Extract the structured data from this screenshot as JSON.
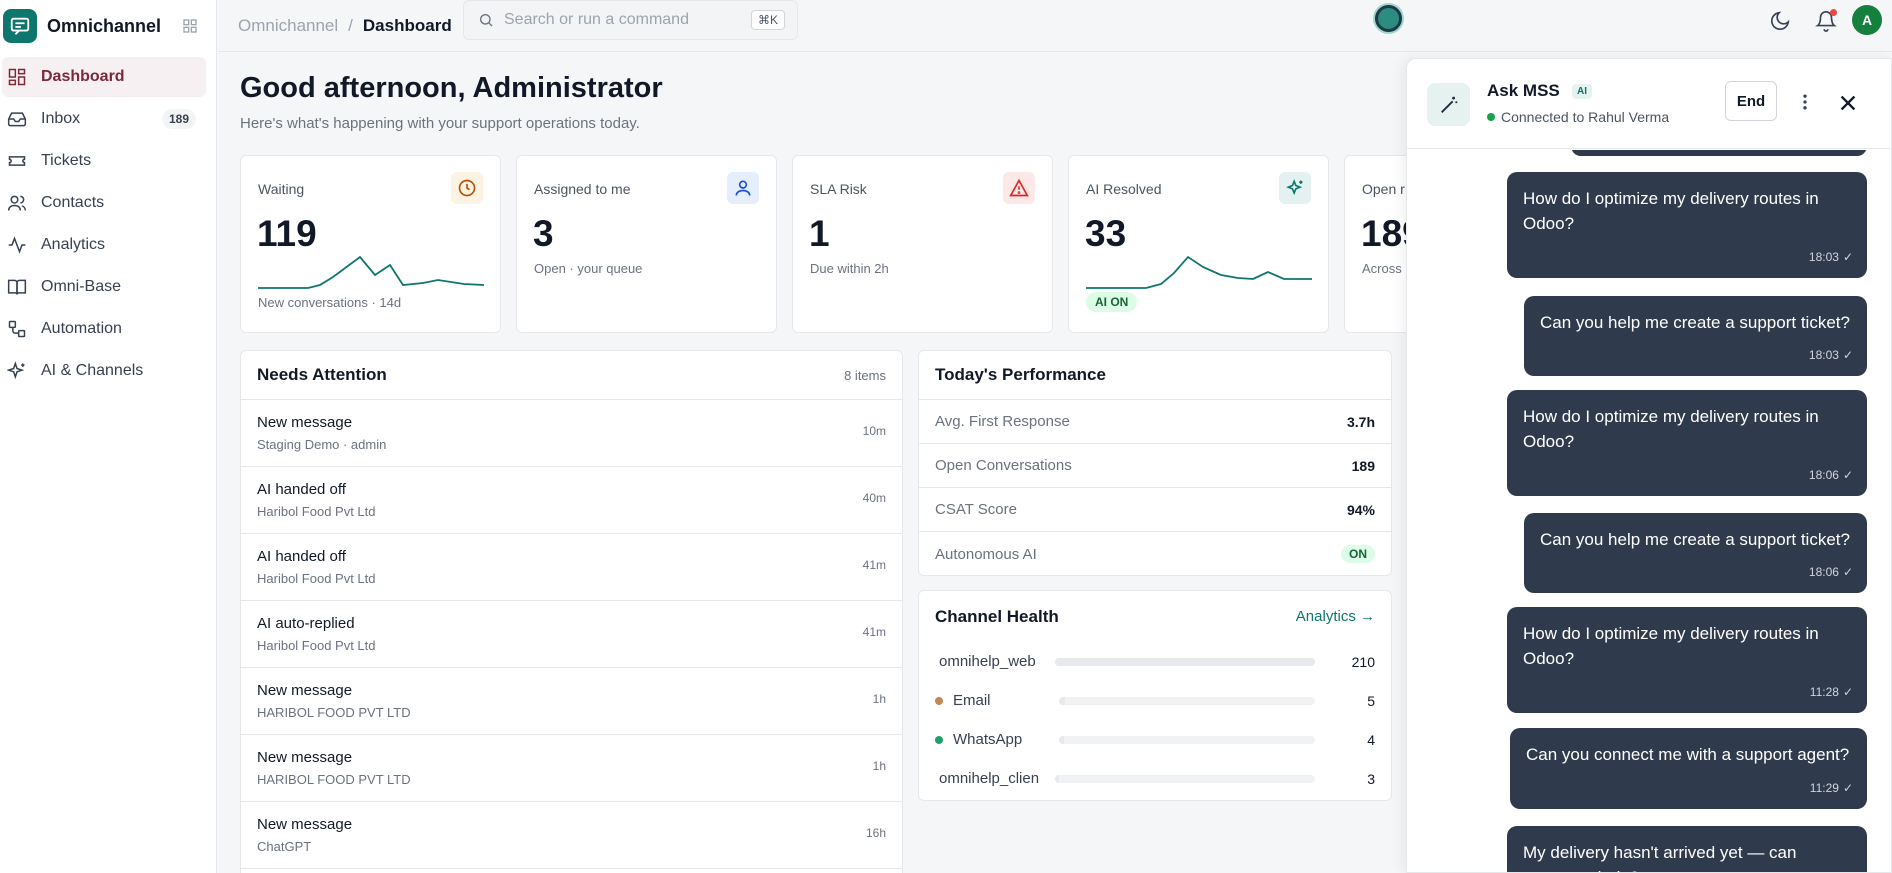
{
  "app": {
    "name": "Omnichannel"
  },
  "sidebar": {
    "items": [
      {
        "label": "Dashboard",
        "icon": "grid-icon"
      },
      {
        "label": "Inbox",
        "icon": "inbox-icon",
        "badge": "189"
      },
      {
        "label": "Tickets",
        "icon": "ticket-icon"
      },
      {
        "label": "Contacts",
        "icon": "users-icon"
      },
      {
        "label": "Analytics",
        "icon": "activity-icon"
      },
      {
        "label": "Omni-Base",
        "icon": "book-icon"
      },
      {
        "label": "Automation",
        "icon": "workflow-icon"
      },
      {
        "label": "AI & Channels",
        "icon": "sparkles-icon"
      }
    ]
  },
  "topbar": {
    "breadcrumb_root": "Omnichannel",
    "breadcrumb_sep": "/",
    "breadcrumb_current": "Dashboard",
    "search_placeholder": "Search or run a command",
    "search_shortcut": "⌘K",
    "avatar_initial": "A"
  },
  "main": {
    "greeting": "Good afternoon, Administrator",
    "subtitle": "Here's what's happening with your support operations today.",
    "stats": [
      {
        "label": "Waiting",
        "value": "119",
        "sub": "New conversations · 14d",
        "icon": "clock-icon",
        "accent": "#b45309"
      },
      {
        "label": "Assigned to me",
        "value": "3",
        "sub": "Open · your queue",
        "icon": "user-icon",
        "accent": "#1d4ed8"
      },
      {
        "label": "SLA Risk",
        "value": "1",
        "sub": "Due within 2h",
        "icon": "alert-triangle-icon",
        "accent": "#dc2626"
      },
      {
        "label": "AI Resolved",
        "value": "33",
        "pill": "AI ON",
        "icon": "sparkle-icon",
        "accent": "#0f766e"
      },
      {
        "label": "Open r",
        "value": "189",
        "sub": "Across"
      }
    ],
    "needs_attention": {
      "title": "Needs Attention",
      "meta": "8 items",
      "items": [
        {
          "title": "New message",
          "sub": "Staging Demo · admin",
          "time": "10m"
        },
        {
          "title": "AI handed off",
          "sub": "Haribol Food Pvt Ltd",
          "time": "40m"
        },
        {
          "title": "AI handed off",
          "sub": "Haribol Food Pvt Ltd",
          "time": "41m"
        },
        {
          "title": "AI auto-replied",
          "sub": "Haribol Food Pvt Ltd",
          "time": "41m"
        },
        {
          "title": "New message",
          "sub": "HARIBOL FOOD PVT LTD",
          "time": "1h"
        },
        {
          "title": "New message",
          "sub": "HARIBOL FOOD PVT LTD",
          "time": "1h"
        },
        {
          "title": "New message",
          "sub": "ChatGPT",
          "time": "16h"
        }
      ]
    },
    "performance": {
      "title": "Today's Performance",
      "rows": [
        {
          "label": "Avg. First Response",
          "value": "3.7h"
        },
        {
          "label": "Open Conversations",
          "value": "189"
        },
        {
          "label": "CSAT Score",
          "value": "94%"
        },
        {
          "label": "Autonomous AI",
          "pill": "ON"
        }
      ]
    },
    "channel_health": {
      "title": "Channel Health",
      "link": "Analytics →",
      "channels": [
        {
          "name": "omnihelp_web",
          "count": "210",
          "share": 1.0
        },
        {
          "name": "Email",
          "count": "5",
          "share": 0.024,
          "dot": "#c2884f"
        },
        {
          "name": "WhatsApp",
          "count": "4",
          "share": 0.019,
          "dot": "#22a06b"
        },
        {
          "name": "omnihelp_clien",
          "count": "3",
          "share": 0.014
        }
      ]
    }
  },
  "chat": {
    "title": "Ask MSS",
    "tag": "AI",
    "status": "Connected to Rahul Verma",
    "end_label": "End",
    "messages": [
      {
        "text": "How do I optimize my delivery routes in Odoo?",
        "time": "18:03"
      },
      {
        "text": "Can you help me create a support ticket?",
        "time": "18:03"
      },
      {
        "text": "How do I optimize my delivery routes in Odoo?",
        "time": "18:06"
      },
      {
        "text": "Can you help me create a support ticket?",
        "time": "18:06"
      },
      {
        "text": "How do I optimize my delivery routes in Odoo?",
        "time": "11:28"
      },
      {
        "text": "Can you connect me with a support agent?",
        "time": "11:29"
      },
      {
        "text": "My delivery hasn't arrived yet — can someone help?",
        "time": ""
      }
    ]
  }
}
